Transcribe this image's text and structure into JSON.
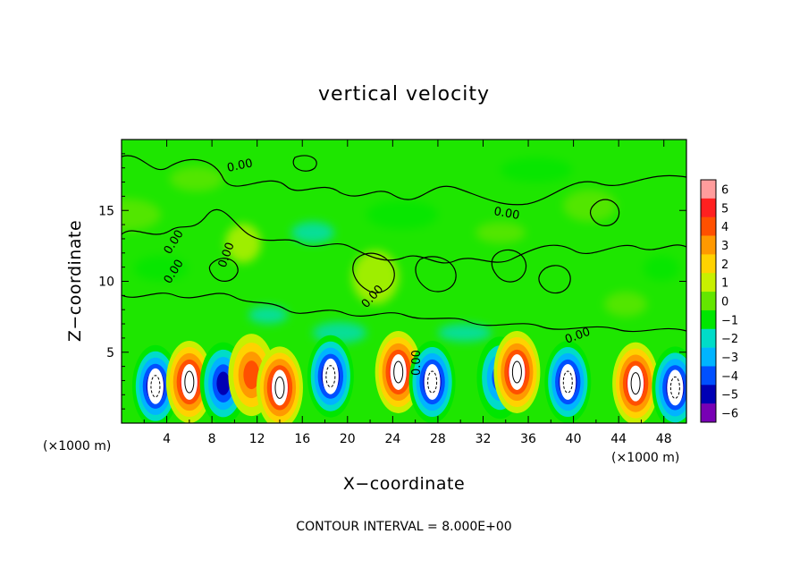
{
  "chart_data": {
    "type": "heatmap",
    "title": "vertical velocity",
    "xlabel": "X−coordinate",
    "ylabel": "Z−coordinate",
    "x_unit_left": "(×1000 m)",
    "x_unit_right": "(×1000 m)",
    "xlim": [
      0,
      50
    ],
    "ylim": [
      0,
      20
    ],
    "x_ticks": [
      "4",
      "8",
      "12",
      "16",
      "20",
      "24",
      "28",
      "32",
      "36",
      "40",
      "44",
      "48"
    ],
    "y_ticks": [
      "5",
      "10",
      "15"
    ],
    "x_tick_values": [
      4,
      8,
      12,
      16,
      20,
      24,
      28,
      32,
      36,
      40,
      44,
      48
    ],
    "y_tick_values": [
      5,
      10,
      15
    ],
    "contour_labels": [
      "0.00",
      "0.00",
      "0.00",
      "0.00",
      "0.00",
      "0.00",
      "0.00",
      "0.00"
    ],
    "footer": "CONTOUR INTERVAL = 8.000E+00",
    "colorbar": {
      "labels": [
        "6",
        "5",
        "4",
        "3",
        "2",
        "1",
        "0",
        "−1",
        "−2",
        "−3",
        "−4",
        "−5",
        "−6"
      ],
      "levels": [
        6,
        5,
        4,
        3,
        2,
        1,
        0,
        -1,
        -2,
        -3,
        -4,
        -5,
        -6
      ],
      "colors": [
        "#ff9c9c",
        "#ff2020",
        "#ff5000",
        "#ff9900",
        "#ffd200",
        "#c8f000",
        "#64e600",
        "#00e600",
        "#00dcc8",
        "#00b4ff",
        "#0050ff",
        "#0000b4",
        "#7800b4"
      ]
    },
    "cells": [
      {
        "x": 3.0,
        "z": 2.6,
        "sign": -1,
        "peak": 6
      },
      {
        "x": 6.0,
        "z": 2.9,
        "sign": 1,
        "peak": 6
      },
      {
        "x": 9.0,
        "z": 2.8,
        "sign": -1,
        "peak": 5
      },
      {
        "x": 11.5,
        "z": 3.4,
        "sign": 1,
        "peak": 4
      },
      {
        "x": 14.0,
        "z": 2.5,
        "sign": 1,
        "peak": 6
      },
      {
        "x": 18.5,
        "z": 3.3,
        "sign": -1,
        "peak": 6
      },
      {
        "x": 24.5,
        "z": 3.6,
        "sign": 1,
        "peak": 6
      },
      {
        "x": 27.5,
        "z": 2.9,
        "sign": -1,
        "peak": 6
      },
      {
        "x": 33.5,
        "z": 3.2,
        "sign": -1,
        "peak": 4
      },
      {
        "x": 35.0,
        "z": 3.6,
        "sign": 1,
        "peak": 6
      },
      {
        "x": 39.5,
        "z": 2.9,
        "sign": -1,
        "peak": 6
      },
      {
        "x": 45.5,
        "z": 2.8,
        "sign": 1,
        "peak": 6
      },
      {
        "x": 49.0,
        "z": 2.5,
        "sign": -1,
        "peak": 6
      }
    ]
  }
}
